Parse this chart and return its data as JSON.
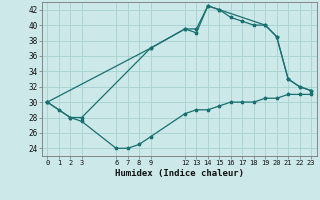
{
  "xlabel": "Humidex (Indice chaleur)",
  "bg_color": "#cce8e8",
  "grid_color": "#aad4d4",
  "line_color": "#1a7070",
  "xlim": [
    -0.5,
    23.5
  ],
  "ylim": [
    23,
    43
  ],
  "xticks": [
    0,
    1,
    2,
    3,
    6,
    7,
    8,
    9,
    12,
    13,
    14,
    15,
    16,
    17,
    18,
    19,
    20,
    21,
    22,
    23
  ],
  "yticks": [
    24,
    26,
    28,
    30,
    32,
    34,
    36,
    38,
    40,
    42
  ],
  "line1_x": [
    0,
    1,
    2,
    3,
    6,
    7,
    8,
    9,
    12,
    13,
    14,
    15,
    16,
    17,
    18,
    19,
    20,
    21,
    22,
    23
  ],
  "line1_y": [
    30,
    29,
    28,
    27.5,
    24,
    24,
    24.5,
    25.5,
    28.5,
    29,
    29,
    29.5,
    30,
    30,
    30,
    30.5,
    30.5,
    31,
    31,
    31
  ],
  "line2_x": [
    0,
    2,
    3,
    9,
    12,
    13,
    14,
    15,
    19,
    20,
    21,
    22,
    23
  ],
  "line2_y": [
    30,
    28,
    28,
    37,
    39.5,
    39,
    42.5,
    42,
    40,
    38.5,
    33,
    32,
    31.5
  ],
  "line3_x": [
    0,
    9,
    12,
    13,
    14,
    15,
    16,
    17,
    18,
    19,
    20,
    21,
    22,
    23
  ],
  "line3_y": [
    30,
    37,
    39.5,
    39.5,
    42.5,
    42,
    41,
    40.5,
    40,
    40,
    38.5,
    33,
    32,
    31.5
  ]
}
